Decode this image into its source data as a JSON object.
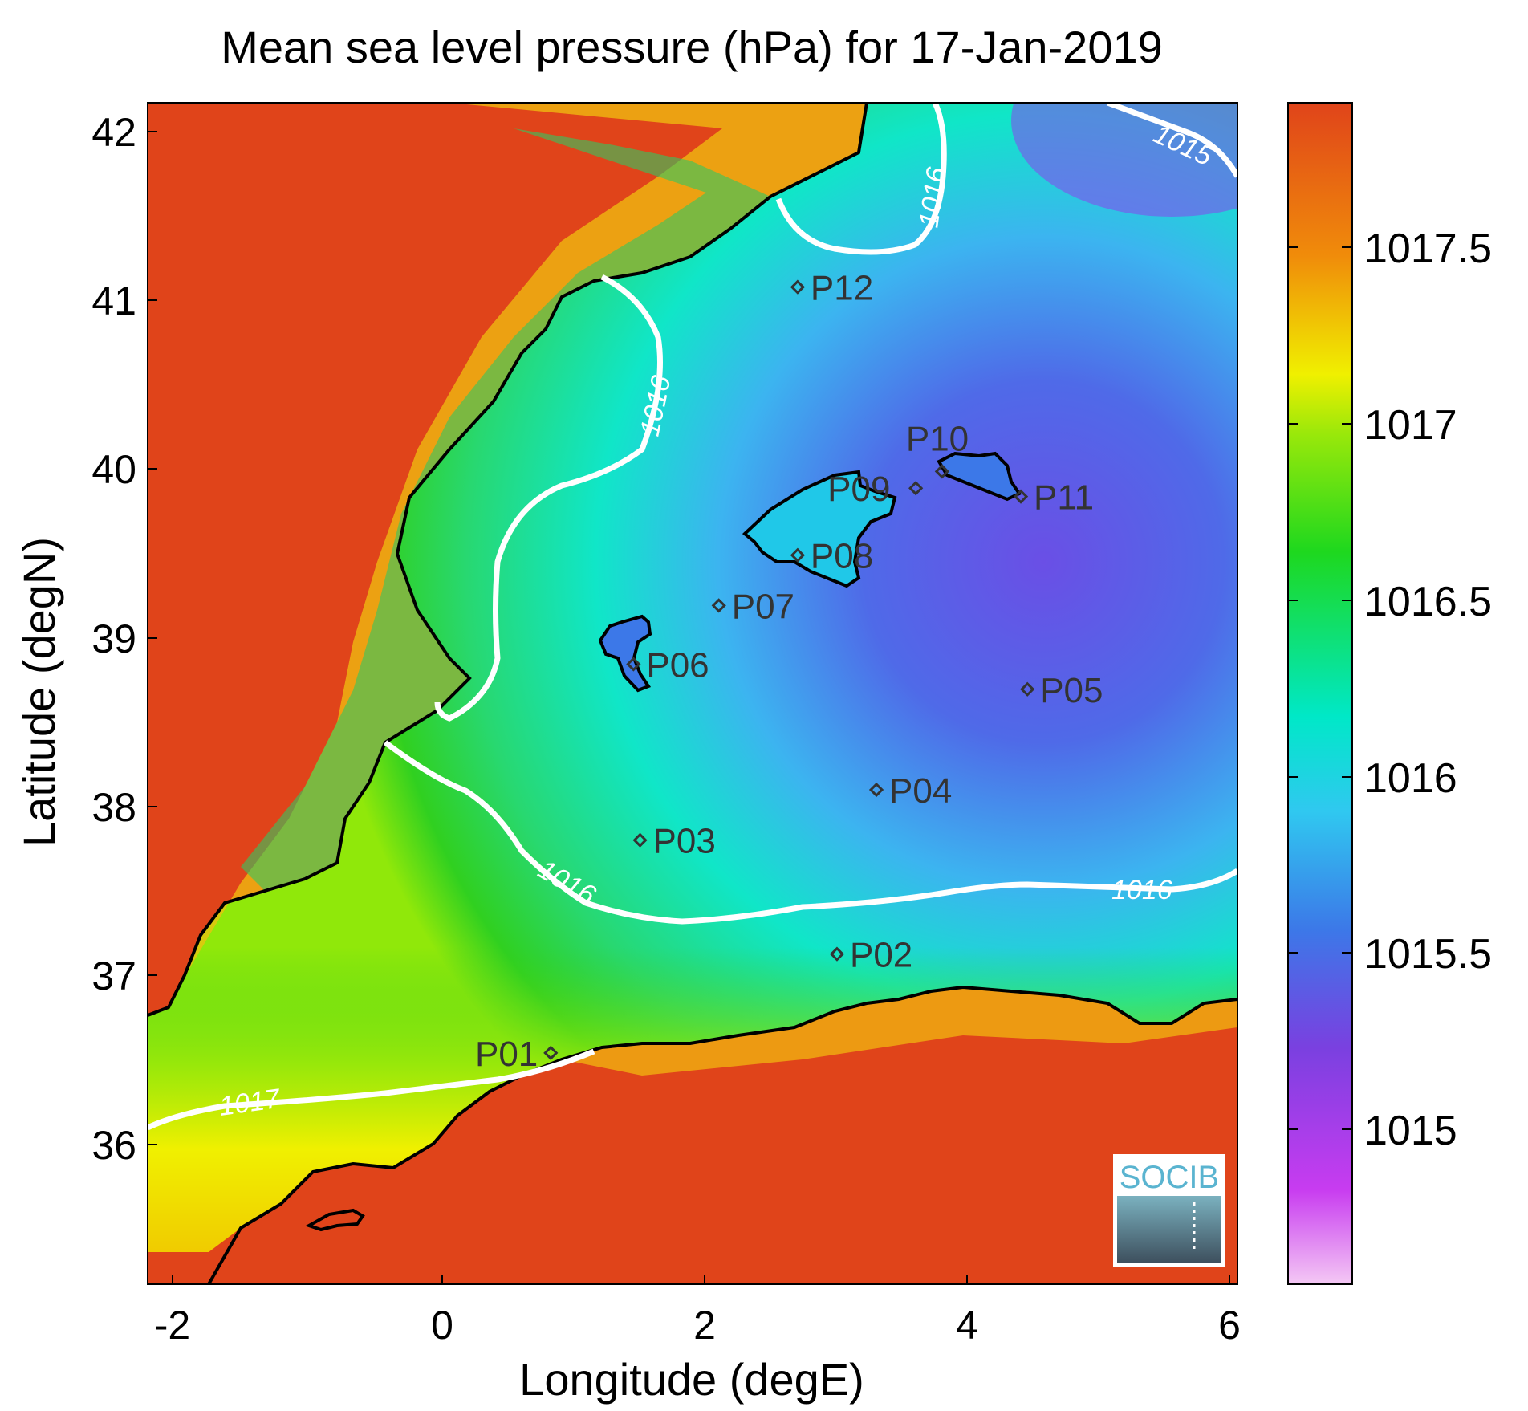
{
  "title": "Mean sea level pressure (hPa) for 17-Jan-2019",
  "x_axis": {
    "label": "Longitude (degE)",
    "range": [
      -2.25,
      6.05
    ],
    "ticks": [
      "-2",
      "0",
      "2",
      "4",
      "6"
    ]
  },
  "y_axis": {
    "label": "Latitude (degN)",
    "range": [
      35.15,
      42.2
    ],
    "ticks": [
      "36",
      "37",
      "38",
      "39",
      "40",
      "41",
      "42"
    ]
  },
  "colorbar": {
    "range": [
      1014.55,
      1017.9
    ],
    "ticks": [
      "1015",
      "1015.5",
      "1016",
      "1016.5",
      "1017",
      "1017.5"
    ],
    "colors": [
      "#f4c8f4",
      "#c83cf0",
      "#7a40e0",
      "#3c78e8",
      "#00e8c8",
      "#1ed81e",
      "#f0f000",
      "#f08c0a",
      "#e0441a"
    ]
  },
  "contour_labels": [
    "1015",
    "1016",
    "1016",
    "1016",
    "1016",
    "1017"
  ],
  "stations": [
    {
      "name": "P01",
      "lon": 0.82,
      "lat": 36.53
    },
    {
      "name": "P02",
      "lon": 3.0,
      "lat": 37.12
    },
    {
      "name": "P03",
      "lon": 1.5,
      "lat": 37.8
    },
    {
      "name": "P04",
      "lon": 3.3,
      "lat": 38.1
    },
    {
      "name": "P05",
      "lon": 4.45,
      "lat": 38.7
    },
    {
      "name": "P06",
      "lon": 1.45,
      "lat": 38.85
    },
    {
      "name": "P07",
      "lon": 2.1,
      "lat": 39.2
    },
    {
      "name": "P08",
      "lon": 2.7,
      "lat": 39.5
    },
    {
      "name": "P09",
      "lon": 3.6,
      "lat": 39.9
    },
    {
      "name": "P10",
      "lon": 3.8,
      "lat": 40.0
    },
    {
      "name": "P11",
      "lon": 4.4,
      "lat": 39.85
    },
    {
      "name": "P12",
      "lon": 2.7,
      "lat": 41.1
    }
  ],
  "logo_text": "SOCIB",
  "land_color": "#e0441a",
  "coast_color": "#000000",
  "contour_color": "#ffffff"
}
